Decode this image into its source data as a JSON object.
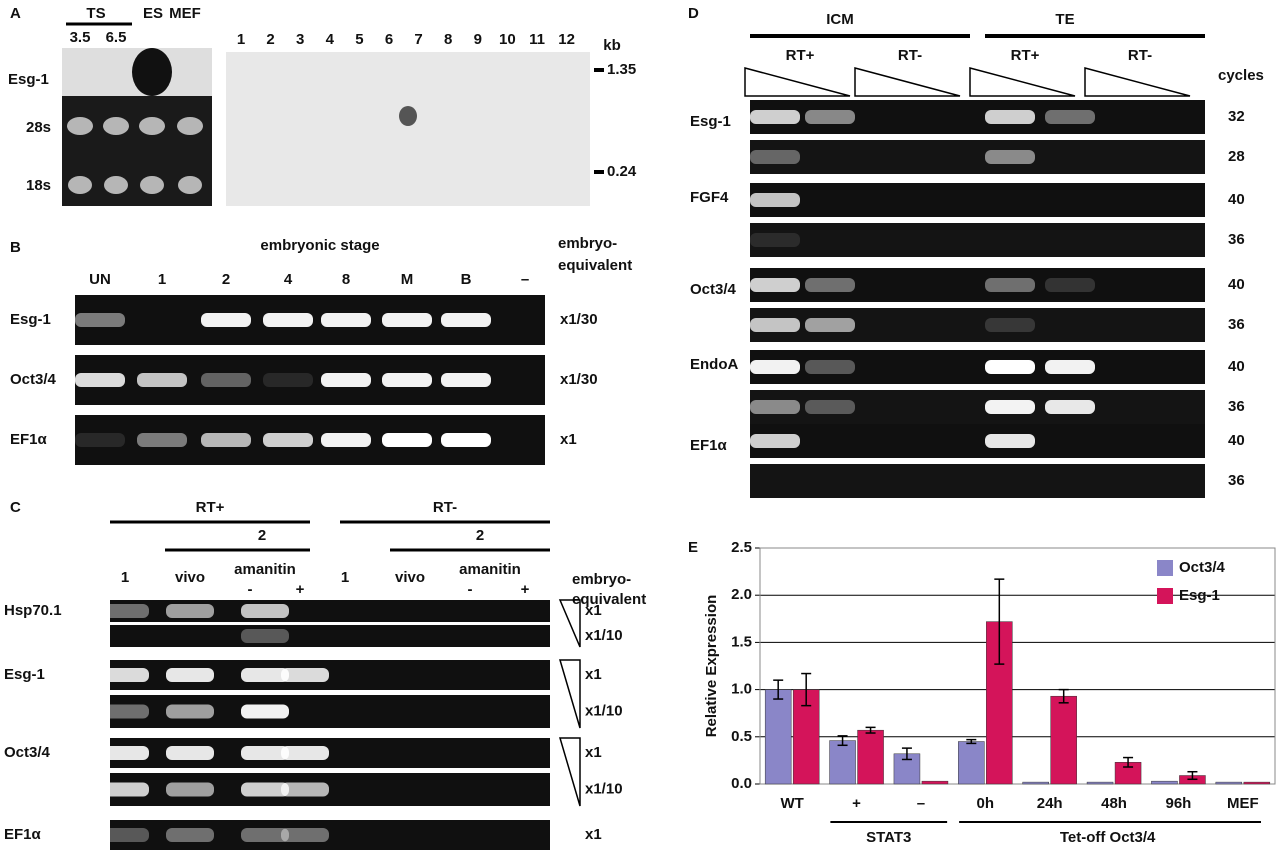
{
  "panel_a": {
    "label": "A",
    "ts": "TS",
    "ts_stages": [
      3.5,
      6.5
    ],
    "es": "ES",
    "mef": "MEF",
    "rows": [
      "Esg-1",
      "28s",
      "18s"
    ],
    "lanes": [
      1,
      2,
      3,
      4,
      5,
      6,
      7,
      8,
      9,
      10,
      11,
      12
    ],
    "kb": "kb",
    "markers": [
      1.35,
      0.24
    ]
  },
  "panel_b": {
    "label": "B",
    "title": "embryonic stage",
    "lanes": [
      "UN",
      "1",
      "2",
      "4",
      "8",
      "M",
      "B",
      "–"
    ],
    "equivalent": [
      "embryo-",
      "equivalent"
    ],
    "rows": [
      {
        "name": "Esg-1",
        "amount": "x1/30"
      },
      {
        "name": "Oct3/4",
        "amount": "x1/30"
      },
      {
        "name": "EF1α",
        "amount": "x1"
      }
    ]
  },
  "panel_c": {
    "label": "C",
    "rt_plus": "RT+",
    "rt_minus": "RT-",
    "stage": [
      "2",
      "2"
    ],
    "lanes": [
      "1",
      "vivo",
      "amanitin",
      "-",
      "+",
      "1",
      "vivo",
      "amanitin",
      "-",
      "+"
    ],
    "equivalent": [
      "embryo-",
      "equivalent"
    ],
    "rows": [
      {
        "name": "Hsp70.1",
        "amounts": [
          "x1",
          "x1/10"
        ]
      },
      {
        "name": "Esg-1",
        "amounts": [
          "x1",
          "x1/10"
        ]
      },
      {
        "name": "Oct3/4",
        "amounts": [
          "x1",
          "x1/10"
        ]
      },
      {
        "name": "EF1α",
        "amounts": [
          "x1"
        ]
      }
    ]
  },
  "panel_d": {
    "label": "D",
    "groups": [
      "ICM",
      "TE"
    ],
    "rt": [
      "RT+",
      "RT-",
      "RT+",
      "RT-"
    ],
    "cycles_label": "cycles",
    "rows": [
      {
        "name": "Esg-1",
        "cycles": [
          32,
          28
        ]
      },
      {
        "name": "FGF4",
        "cycles": [
          40,
          36
        ]
      },
      {
        "name": "Oct3/4",
        "cycles": [
          40,
          36
        ]
      },
      {
        "name": "EndoA",
        "cycles": [
          40,
          36
        ]
      },
      {
        "name": "EF1α",
        "cycles": [
          40,
          36
        ]
      }
    ]
  },
  "chart_data": {
    "type": "bar",
    "panel_label": "E",
    "y_label": "Relative Expression",
    "categories": [
      "WT",
      "+",
      "–",
      "0h",
      "24h",
      "48h",
      "96h",
      "MEF"
    ],
    "groups": [
      "STAT3",
      "Tet-off Oct3/4"
    ],
    "series": [
      {
        "name": "Oct3/4",
        "color": "#8a86c8",
        "values": [
          1.0,
          0.46,
          0.32,
          0.45,
          0.02,
          0.02,
          0.03,
          0.02
        ],
        "errors": [
          0.1,
          0.05,
          0.06,
          0.02,
          0,
          0,
          0,
          0
        ]
      },
      {
        "name": "Esg-1",
        "color": "#d4145a",
        "values": [
          1.0,
          0.57,
          0.03,
          1.72,
          0.93,
          0.23,
          0.09,
          0.02
        ],
        "errors": [
          0.17,
          0.03,
          0,
          0.45,
          0.07,
          0.05,
          0.04,
          0
        ]
      }
    ],
    "ylim": [
      0,
      2.5
    ],
    "yticks": [
      {
        "value": 0,
        "label": "0.0"
      },
      0.5,
      {
        "value": 1,
        "label": "1.0"
      },
      1.5,
      {
        "value": 2,
        "label": "2.0"
      },
      2.5
    ],
    "grid": true,
    "legend": "top-right"
  }
}
